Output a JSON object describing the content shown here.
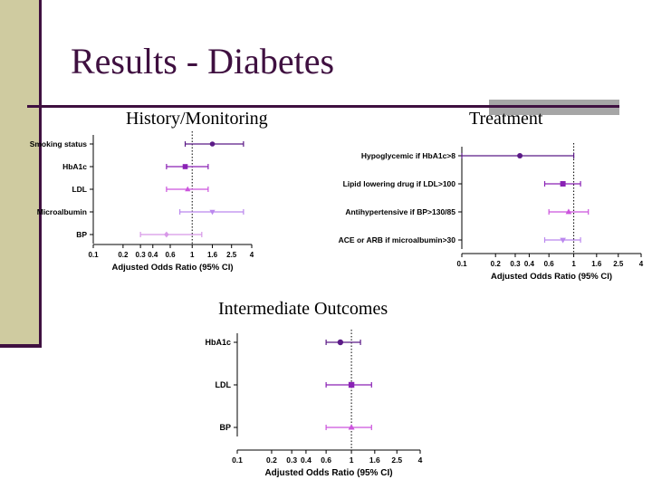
{
  "slide": {
    "title": "Results - Diabetes",
    "colors": {
      "title": "#3f1040",
      "accent_bar": "#cfcba0",
      "rule": "#3f1040",
      "rule_gray": "#a6a6a6"
    }
  },
  "chart_data": [
    {
      "id": "history",
      "type": "scatter",
      "subtype": "forest-plot",
      "title": "History/Monitoring",
      "xlabel": "Adjusted Odds  Ratio (95% CI)",
      "ylabel": "",
      "x_scale": "log",
      "xticks": [
        "0.1",
        "0.2",
        "0.3",
        "0.4",
        "0.6",
        "1",
        "1.6",
        "2.5",
        "4"
      ],
      "xlim": [
        0.1,
        4
      ],
      "reference_line": 1,
      "series": [
        {
          "label": "Smoking status",
          "or": 1.6,
          "ci": [
            0.85,
            3.3
          ],
          "marker": "circle",
          "color": "#5b1a87"
        },
        {
          "label": "HbA1c",
          "or": 0.85,
          "ci": [
            0.55,
            1.45
          ],
          "marker": "square",
          "color": "#8a22b5"
        },
        {
          "label": "LDL",
          "or": 0.9,
          "ci": [
            0.55,
            1.45
          ],
          "marker": "triangle-up",
          "color": "#cc55dd"
        },
        {
          "label": "Microalbumin",
          "or": 1.6,
          "ci": [
            0.75,
            3.3
          ],
          "marker": "triangle-down",
          "color": "#bb88ee"
        },
        {
          "label": "BP",
          "or": 0.55,
          "ci": [
            0.3,
            1.25
          ],
          "marker": "diamond",
          "color": "#d898e8"
        }
      ]
    },
    {
      "id": "treatment",
      "type": "scatter",
      "subtype": "forest-plot",
      "title": "Treatment",
      "xlabel": "Adjusted Odds  Ratio (95% CI)",
      "ylabel": "",
      "x_scale": "log",
      "xticks": [
        "0.1",
        "0.2",
        "0.3",
        "0.4",
        "0.6",
        "1",
        "1.6",
        "2.5",
        "4"
      ],
      "xlim": [
        0.1,
        4
      ],
      "reference_line": 1,
      "series": [
        {
          "label": "Hypoglycemic if HbA1c>8",
          "or": 0.33,
          "ci": [
            0.1,
            1.0
          ],
          "marker": "circle",
          "color": "#5b1a87"
        },
        {
          "label": "Lipid lowering drug if LDL>100",
          "or": 0.8,
          "ci": [
            0.55,
            1.15
          ],
          "marker": "square",
          "color": "#8a22b5"
        },
        {
          "label": "Antihypertensive if BP>130/85",
          "or": 0.9,
          "ci": [
            0.6,
            1.35
          ],
          "marker": "triangle-up",
          "color": "#cc55dd"
        },
        {
          "label": "ACE or ARB if microalbumin>30",
          "or": 0.8,
          "ci": [
            0.55,
            1.15
          ],
          "marker": "triangle-down",
          "color": "#bb88ee"
        }
      ]
    },
    {
      "id": "intermediate",
      "type": "scatter",
      "subtype": "forest-plot",
      "title": "Intermediate Outcomes",
      "xlabel": "Adjusted Odds  Ratio (95% CI)",
      "ylabel": "",
      "x_scale": "log",
      "xticks": [
        "0.1",
        "0.2",
        "0.3",
        "0.4",
        "0.6",
        "1",
        "1.6",
        "2.5",
        "4"
      ],
      "xlim": [
        0.1,
        4
      ],
      "reference_line": 1,
      "series": [
        {
          "label": "HbA1c",
          "or": 0.8,
          "ci": [
            0.6,
            1.2
          ],
          "marker": "circle",
          "color": "#5b1a87"
        },
        {
          "label": "LDL",
          "or": 1.0,
          "ci": [
            0.6,
            1.5
          ],
          "marker": "square",
          "color": "#8a22b5"
        },
        {
          "label": "BP",
          "or": 1.0,
          "ci": [
            0.6,
            1.5
          ],
          "marker": "triangle-up",
          "color": "#cc55dd"
        }
      ]
    }
  ]
}
